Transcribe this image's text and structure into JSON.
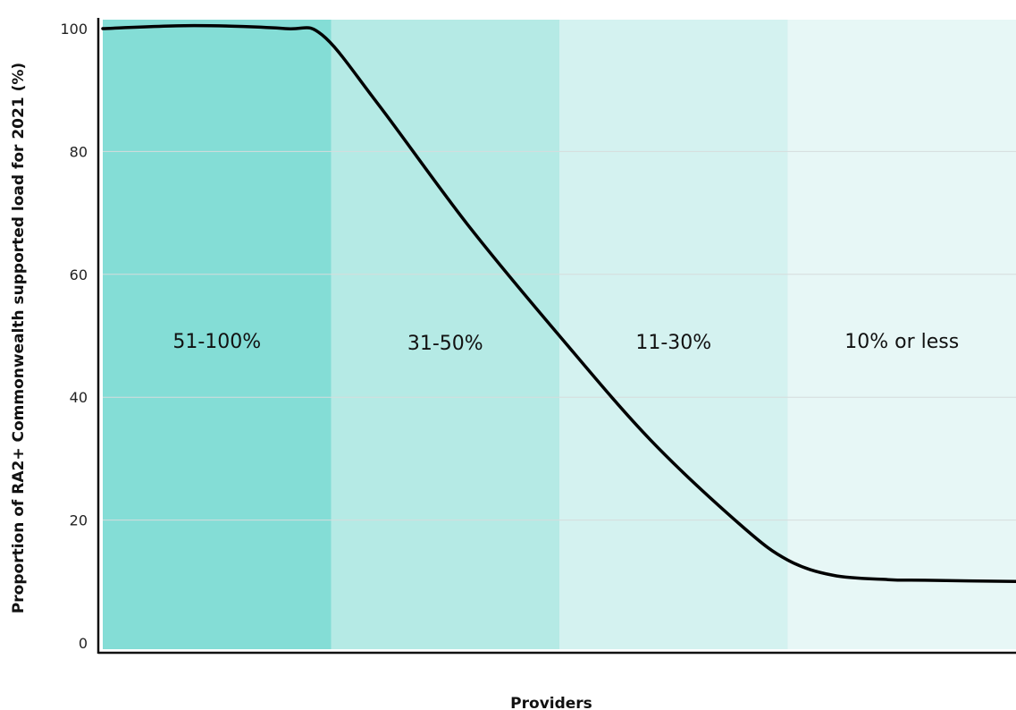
{
  "chart_data": {
    "type": "line",
    "title": "",
    "xlabel": "Providers",
    "ylabel": "Proportion of RA2+ Commonwealth supported load for 2021 (%)",
    "ylim": [
      0,
      100
    ],
    "yticks": [
      "0",
      "20",
      "40",
      "60",
      "80",
      "100"
    ],
    "grid": true,
    "bands": [
      {
        "label": "51-100%",
        "color": "#84ddd6"
      },
      {
        "label": "31-50%",
        "color": "#b5eae5"
      },
      {
        "label": "11-30%",
        "color": "#d4f2f0"
      },
      {
        "label": "10% or less",
        "color": "#e7f7f6"
      }
    ],
    "series": [
      {
        "color": "#000000",
        "x": [
          0,
          0.1,
          0.2,
          0.24,
          0.3,
          0.4,
          0.5,
          0.6,
          0.7,
          0.75,
          0.8,
          0.86,
          0.9,
          1.0
        ],
        "values": [
          100,
          100.5,
          100,
          99,
          88,
          68,
          50,
          33,
          19,
          13.5,
          11,
          10.3,
          10.2,
          10
        ]
      }
    ]
  }
}
